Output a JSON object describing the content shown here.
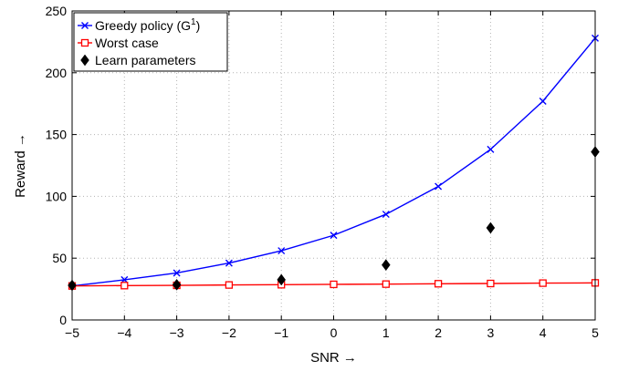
{
  "chart_data": {
    "type": "line",
    "xlabel": "SNR →",
    "ylabel": "Reward →",
    "xlim": [
      -5,
      5
    ],
    "ylim": [
      0,
      250
    ],
    "x_ticks": [
      "−5",
      "−4",
      "−3",
      "−2",
      "−1",
      "0",
      "1",
      "2",
      "3",
      "4",
      "5"
    ],
    "y_ticks": [
      "0",
      "50",
      "100",
      "150",
      "200",
      "250"
    ],
    "grid": true,
    "legend_position": "top-left",
    "series": [
      {
        "name": "Greedy policy (G",
        "name_sup": "1",
        "name_suffix": ")",
        "color": "#0000ff",
        "marker": "x",
        "line": true,
        "x": [
          -5,
          -4,
          -3,
          -2,
          -1,
          0,
          1,
          2,
          3,
          4,
          5
        ],
        "y": [
          27.5,
          32.5,
          38,
          46,
          56,
          68.5,
          85.5,
          108,
          138,
          177,
          228
        ]
      },
      {
        "name": "Worst case",
        "color": "#ff0000",
        "marker": "square",
        "line": true,
        "x": [
          -5,
          -4,
          -3,
          -2,
          -1,
          0,
          1,
          2,
          3,
          4,
          5
        ],
        "y": [
          27.5,
          27.8,
          28,
          28.3,
          28.5,
          28.8,
          29,
          29.3,
          29.5,
          29.8,
          30
        ]
      },
      {
        "name": "Learn parameters",
        "color": "#000000",
        "marker": "diamond",
        "line": false,
        "x": [
          -5,
          -3,
          -1,
          1,
          3,
          5
        ],
        "y": [
          28,
          28.5,
          32.5,
          44.5,
          74.5,
          136
        ]
      }
    ]
  }
}
